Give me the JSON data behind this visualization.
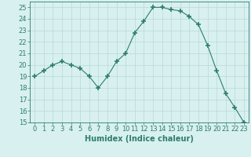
{
  "x": [
    0,
    1,
    2,
    3,
    4,
    5,
    6,
    7,
    8,
    9,
    10,
    11,
    12,
    13,
    14,
    15,
    16,
    17,
    18,
    19,
    20,
    21,
    22,
    23
  ],
  "y": [
    19,
    19.5,
    20,
    20.3,
    20,
    19.7,
    19,
    18,
    19,
    20.3,
    21,
    22.8,
    23.8,
    25,
    25,
    24.8,
    24.7,
    24.2,
    23.5,
    21.7,
    19.5,
    17.5,
    16.3,
    15
  ],
  "line_color": "#2e7d6e",
  "marker": "+",
  "marker_size": 4,
  "bg_color": "#d8f0f0",
  "grid_color": "#b8d8d8",
  "xlabel": "Humidex (Indice chaleur)",
  "ylim": [
    15,
    25.5
  ],
  "xlim": [
    -0.5,
    23.5
  ],
  "yticks": [
    15,
    16,
    17,
    18,
    19,
    20,
    21,
    22,
    23,
    24,
    25
  ],
  "xticks": [
    0,
    1,
    2,
    3,
    4,
    5,
    6,
    7,
    8,
    9,
    10,
    11,
    12,
    13,
    14,
    15,
    16,
    17,
    18,
    19,
    20,
    21,
    22,
    23
  ],
  "axis_color": "#2e7d6e",
  "label_fontsize": 7,
  "tick_fontsize": 6
}
